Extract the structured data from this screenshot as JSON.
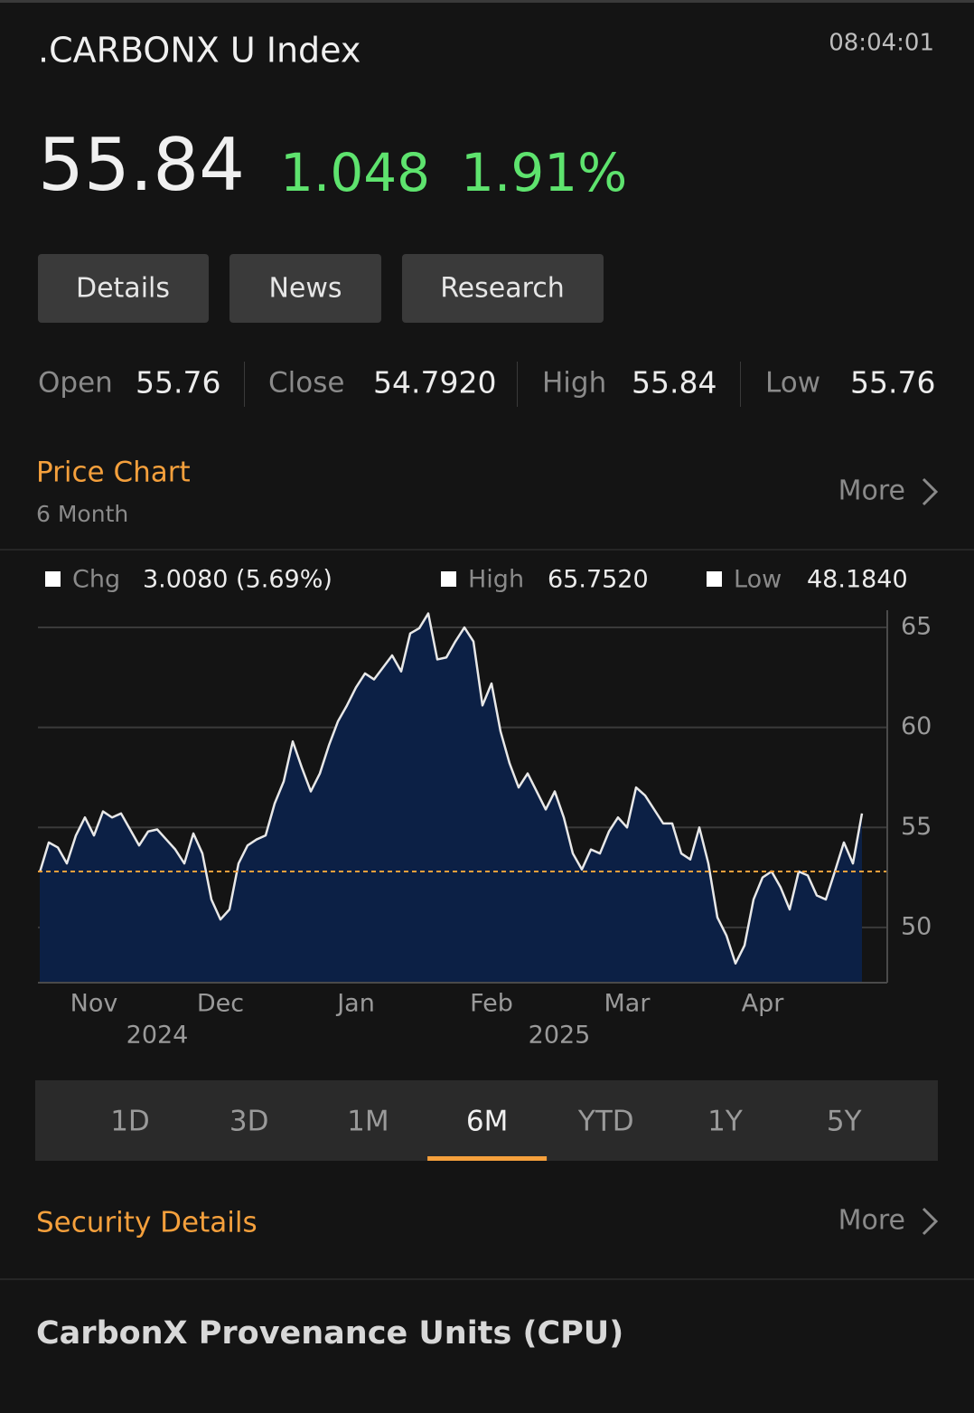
{
  "header": {
    "title": ".CARBONX U Index",
    "time": "08:04:01"
  },
  "quote": {
    "price": "55.84",
    "change": "1.048",
    "change_pct": "1.91%"
  },
  "tabs": [
    "Details",
    "News",
    "Research"
  ],
  "stats": [
    {
      "label": "Open",
      "value": "55.76"
    },
    {
      "label": "Close",
      "value": "54.7920"
    },
    {
      "label": "High",
      "value": "55.84"
    },
    {
      "label": "Low",
      "value": "55.76"
    }
  ],
  "price_chart": {
    "title": "Price Chart",
    "subtitle": "6 Month",
    "more": "More"
  },
  "chart_data": {
    "type": "area",
    "legend": [
      {
        "label": "Chg",
        "value": "3.0080 (5.69%)"
      },
      {
        "label": "High",
        "value": "65.7520"
      },
      {
        "label": "Low",
        "value": "48.1840"
      }
    ],
    "categories": [
      null,
      null,
      null,
      null,
      null,
      null,
      "Nov",
      null,
      null,
      null,
      null,
      null,
      null,
      null,
      null,
      null,
      null,
      null,
      null,
      null,
      "Dec",
      null,
      null,
      null,
      null,
      null,
      null,
      null,
      null,
      null,
      null,
      null,
      null,
      null,
      null,
      "Jan",
      null,
      null,
      null,
      null,
      null,
      null,
      null,
      null,
      null,
      null,
      null,
      null,
      null,
      null,
      "Feb",
      null,
      null,
      null,
      null,
      null,
      null,
      null,
      null,
      null,
      null,
      null,
      null,
      null,
      null,
      "Mar",
      null,
      null,
      null,
      null,
      null,
      null,
      null,
      null,
      null,
      null,
      null,
      null,
      null,
      null,
      "Apr",
      null,
      null,
      null,
      null,
      null,
      null,
      null,
      null,
      null,
      null,
      null
    ],
    "year_labels": [
      "2024",
      "2025"
    ],
    "series": [
      {
        "color": "#e8e8e8",
        "fill": "#0c2045",
        "values": [
          52.76,
          54.25,
          54.0,
          53.2,
          54.6,
          55.5,
          54.6,
          55.8,
          55.5,
          55.7,
          54.9,
          54.1,
          54.8,
          54.9,
          54.4,
          53.9,
          53.2,
          54.7,
          53.7,
          51.4,
          50.4,
          50.9,
          53.2,
          54.1,
          54.4,
          54.6,
          56.2,
          57.3,
          59.3,
          58.0,
          56.8,
          57.7,
          59.1,
          60.3,
          61.1,
          62.0,
          62.7,
          62.4,
          63.0,
          63.6,
          62.8,
          64.7,
          64.96,
          65.7,
          63.4,
          63.5,
          64.3,
          65.0,
          64.3,
          61.1,
          62.2,
          59.8,
          58.2,
          57.0,
          57.7,
          56.8,
          55.9,
          56.8,
          55.5,
          53.7,
          52.9,
          53.9,
          53.7,
          54.8,
          55.5,
          55.0,
          57.0,
          56.6,
          55.9,
          55.2,
          55.2,
          53.7,
          53.4,
          55.0,
          53.2,
          50.5,
          49.6,
          48.2,
          49.1,
          51.4,
          52.5,
          52.8,
          52.0,
          50.9,
          52.8,
          52.6,
          51.6,
          51.4,
          52.8,
          54.25,
          53.2,
          55.7
        ]
      }
    ],
    "ref_line": {
      "value": 52.8,
      "color": "#f5a03c"
    },
    "ylim": [
      47.24,
      65.86
    ],
    "yticks": [
      50,
      55,
      60,
      65
    ],
    "grid": true
  },
  "ranges": {
    "items": [
      "1D",
      "3D",
      "1M",
      "6M",
      "YTD",
      "1Y",
      "5Y"
    ],
    "selected": "6M"
  },
  "security_details": {
    "title": "Security Details",
    "more": "More"
  },
  "security_name": "CarbonX Provenance Units (CPU)"
}
